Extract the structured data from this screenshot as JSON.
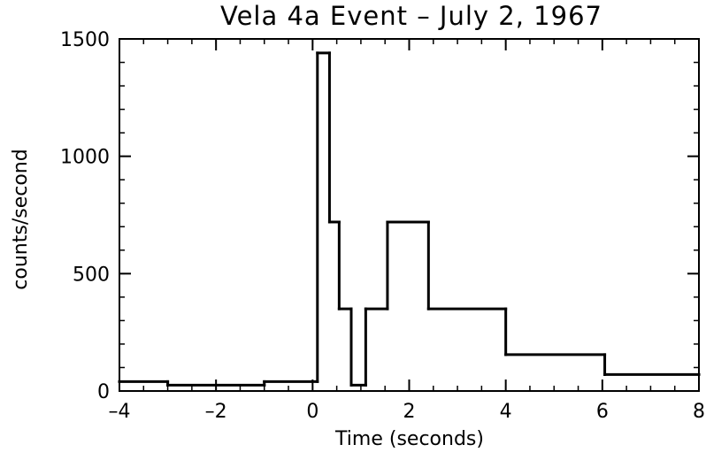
{
  "chart_data": {
    "type": "line",
    "subtype": "step",
    "title": "Vela 4a Event – July 2, 1967",
    "xlabel": "Time (seconds)",
    "ylabel": "counts/second",
    "xlim": [
      -4,
      8
    ],
    "ylim": [
      0,
      1500
    ],
    "grid": false,
    "legend": "none",
    "x_ticks": [
      -4,
      -2,
      0,
      2,
      4,
      6,
      8
    ],
    "x_tick_labels": [
      "–4",
      "–2",
      "0",
      "2",
      "4",
      "6",
      "8"
    ],
    "x_minor_step": 0.5,
    "y_ticks": [
      0,
      500,
      1000,
      1500
    ],
    "y_tick_labels": [
      "0",
      "500",
      "1000",
      "1500"
    ],
    "y_minor_step": 100,
    "series": [
      {
        "color": "#000000",
        "bins": [
          {
            "x0": -4.0,
            "x1": -3.0,
            "y": 40
          },
          {
            "x0": -3.0,
            "x1": -1.0,
            "y": 25
          },
          {
            "x0": -1.0,
            "x1": 0.1,
            "y": 40
          },
          {
            "x0": 0.1,
            "x1": 0.35,
            "y": 1440
          },
          {
            "x0": 0.35,
            "x1": 0.55,
            "y": 720
          },
          {
            "x0": 0.55,
            "x1": 0.8,
            "y": 350
          },
          {
            "x0": 0.8,
            "x1": 1.1,
            "y": 25
          },
          {
            "x0": 1.1,
            "x1": 1.55,
            "y": 350
          },
          {
            "x0": 1.55,
            "x1": 2.4,
            "y": 720
          },
          {
            "x0": 2.4,
            "x1": 4.0,
            "y": 350
          },
          {
            "x0": 4.0,
            "x1": 6.05,
            "y": 155
          },
          {
            "x0": 6.05,
            "x1": 8.0,
            "y": 70
          }
        ]
      }
    ]
  }
}
